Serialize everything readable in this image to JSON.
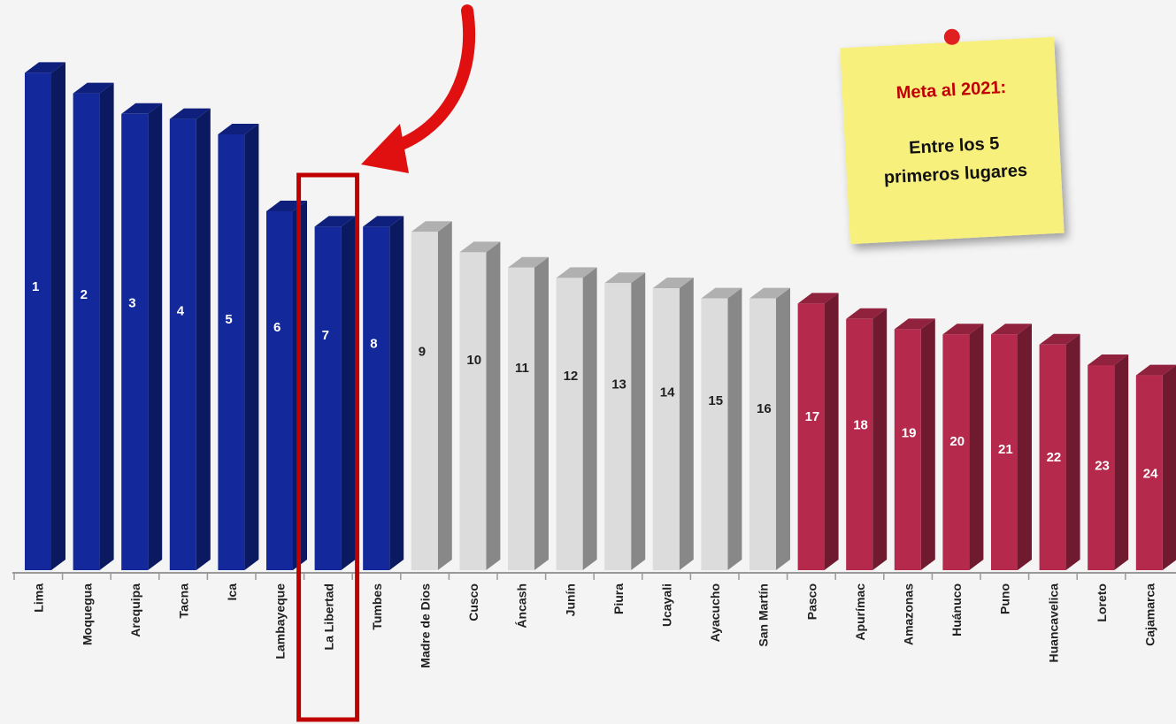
{
  "chart_data": {
    "type": "bar3d",
    "categories": [
      "Lima",
      "Moquegua",
      "Arequipa",
      "Tacna",
      "Ica",
      "Lambayeque",
      "La Libertad",
      "Tumbes",
      "Madre de Dios",
      "Cusco",
      "Áncash",
      "Junín",
      "Piura",
      "Ucayali",
      "Ayacucho",
      "San Martín",
      "Pasco",
      "Apurímac",
      "Amazonas",
      "Huánuco",
      "Puno",
      "Huancavelica",
      "Loreto",
      "Cajamarca"
    ],
    "values": [
      97,
      93,
      89,
      88,
      85,
      70,
      67,
      67,
      66,
      62,
      59,
      57,
      56,
      55,
      53,
      53,
      52,
      49,
      47,
      46,
      46,
      44,
      40,
      38
    ],
    "ranks": [
      1,
      2,
      3,
      4,
      5,
      6,
      7,
      8,
      9,
      10,
      11,
      12,
      13,
      14,
      15,
      16,
      17,
      18,
      19,
      20,
      21,
      22,
      23,
      24
    ],
    "colors": [
      "#12289b",
      "#12289b",
      "#12289b",
      "#12289b",
      "#12289b",
      "#12289b",
      "#12289b",
      "#12289b",
      "#dcdcdc",
      "#dcdcdc",
      "#dcdcdc",
      "#dcdcdc",
      "#dcdcdc",
      "#dcdcdc",
      "#dcdcdc",
      "#dcdcdc",
      "#b52a4c",
      "#b52a4c",
      "#b52a4c",
      "#b52a4c",
      "#b52a4c",
      "#b52a4c",
      "#b52a4c",
      "#b52a4c"
    ],
    "ylim": [
      0,
      100
    ],
    "highlight_index": 6,
    "note": {
      "title": "Meta al 2021:",
      "lines": [
        "Entre los 5",
        "primeros lugares"
      ]
    }
  }
}
